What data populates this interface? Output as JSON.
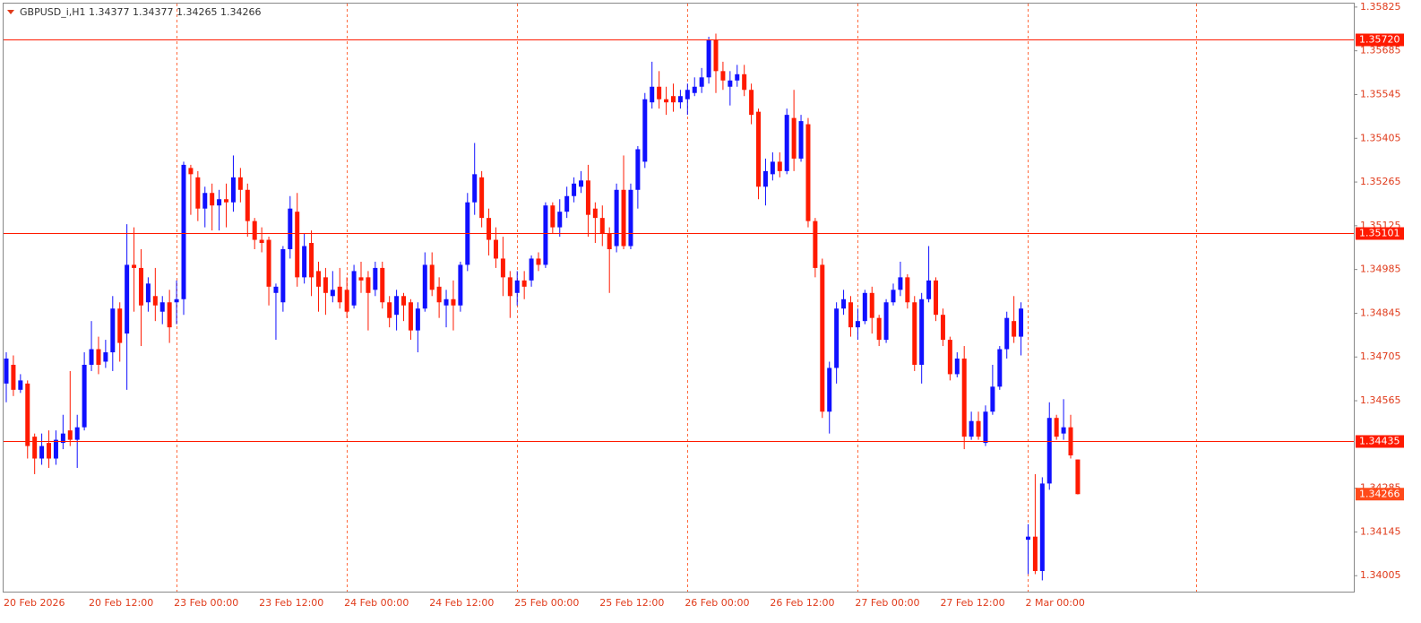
{
  "chart_data": {
    "type": "candlestick",
    "title": "GBPUSD_i,H1  1.34377 1.34377 1.34265 1.34266",
    "categories": [
      "20 Feb 2026",
      null,
      null,
      null,
      null,
      null,
      null,
      null,
      null,
      null,
      null,
      null,
      "20 Feb 12:00",
      null,
      null,
      null,
      null,
      null,
      null,
      null,
      null,
      null,
      null,
      null,
      "23 Feb 00:00",
      null,
      null,
      null,
      null,
      null,
      null,
      null,
      null,
      null,
      null,
      null,
      "23 Feb 12:00",
      null,
      null,
      null,
      null,
      null,
      null,
      null,
      null,
      null,
      null,
      null,
      "24 Feb 00:00",
      null,
      null,
      null,
      null,
      null,
      null,
      null,
      null,
      null,
      null,
      null,
      "24 Feb 12:00",
      null,
      null,
      null,
      null,
      null,
      null,
      null,
      null,
      null,
      null,
      null,
      "25 Feb 00:00",
      null,
      null,
      null,
      null,
      null,
      null,
      null,
      null,
      null,
      null,
      null,
      "25 Feb 12:00",
      null,
      null,
      null,
      null,
      null,
      null,
      null,
      null,
      null,
      null,
      null,
      "26 Feb 00:00",
      null,
      null,
      null,
      null,
      null,
      null,
      null,
      null,
      null,
      null,
      null,
      "26 Feb 12:00",
      null,
      null,
      null,
      null,
      null,
      null,
      null,
      null,
      null,
      null,
      null,
      "27 Feb 00:00",
      null,
      null,
      null,
      null,
      null,
      null,
      null,
      null,
      null,
      null,
      null,
      "27 Feb 12:00",
      null,
      null,
      null,
      null,
      null,
      null,
      null,
      null,
      null,
      null,
      null,
      "2 Mar 00:00",
      null,
      null,
      null,
      null,
      null,
      null,
      null
    ],
    "open": [
      1.3462,
      1.3468,
      1.346,
      1.3462,
      1.3445,
      1.3438,
      1.3443,
      1.3438,
      1.3443,
      1.3447,
      1.3444,
      1.3448,
      1.3468,
      1.3473,
      1.3469,
      1.3472,
      1.3486,
      1.3478,
      1.35,
      1.3499,
      1.3488,
      1.349,
      1.3485,
      1.3488,
      1.3488,
      1.3489,
      1.3531,
      1.3528,
      1.3518,
      1.3523,
      1.3519,
      1.3521,
      1.352,
      1.3528,
      1.3524,
      1.3514,
      1.3508,
      1.3508,
      1.3491,
      1.3488,
      1.3505,
      1.3517,
      1.3496,
      1.3507,
      1.3498,
      1.3496,
      1.349,
      1.3493,
      1.3492,
      1.3487,
      1.3496,
      1.3496,
      1.3492,
      1.3499,
      1.3488,
      1.3484,
      1.349,
      1.3488,
      1.3479,
      1.3486,
      1.35,
      1.3493,
      1.3487,
      1.3489,
      1.3487,
      1.35,
      1.352,
      1.3528,
      1.3515,
      1.3508,
      1.3502,
      1.3496,
      1.3491,
      1.3495,
      1.3495,
      1.3502,
      1.35,
      1.3519,
      1.3512,
      1.3517,
      1.3522,
      1.3525,
      1.3527,
      1.3518,
      1.3515,
      1.351,
      1.3506,
      1.3524,
      1.3506,
      1.3524,
      1.3533,
      1.3552,
      1.3557,
      1.3553,
      1.3554,
      1.3552,
      1.3553,
      1.3555,
      1.3557,
      1.356,
      1.3572,
      1.3562,
      1.3557,
      1.3559,
      1.3561,
      1.3556,
      1.3549,
      1.3525,
      1.3529,
      1.3533,
      1.353,
      1.3547,
      1.3534,
      1.3545,
      1.3514,
      1.35,
      1.3453,
      1.3467,
      1.3486,
      1.3488,
      1.348,
      1.3482,
      1.3491,
      1.3483,
      1.3476,
      1.3488,
      1.3492,
      1.3496,
      1.3488,
      1.3468,
      1.3489,
      1.3495,
      1.3484,
      1.3476,
      1.3465,
      1.347,
      1.3445,
      1.345,
      1.3443,
      1.3453,
      1.3461,
      1.3473,
      1.3482,
      1.3477,
      1.3412,
      1.3413,
      1.3402,
      1.343,
      1.3451,
      1.3446,
      1.3448,
      1.34377
    ],
    "high": [
      1.3472,
      1.3471,
      1.3465,
      1.3463,
      1.3446,
      1.3446,
      1.3447,
      1.3447,
      1.3452,
      1.3466,
      1.3452,
      1.3472,
      1.3482,
      1.3477,
      1.3476,
      1.349,
      1.3488,
      1.3513,
      1.3512,
      1.3505,
      1.3496,
      1.3499,
      1.349,
      1.3492,
      1.3495,
      1.3533,
      1.3532,
      1.353,
      1.3525,
      1.3526,
      1.3524,
      1.3526,
      1.3535,
      1.3531,
      1.3526,
      1.3515,
      1.3512,
      1.3509,
      1.3494,
      1.3506,
      1.3522,
      1.3523,
      1.351,
      1.3511,
      1.3501,
      1.3499,
      1.3498,
      1.3499,
      1.3496,
      1.35,
      1.3501,
      1.3498,
      1.3501,
      1.3501,
      1.349,
      1.3492,
      1.3491,
      1.3489,
      1.3488,
      1.3504,
      1.3504,
      1.3496,
      1.3492,
      1.3495,
      1.3501,
      1.3523,
      1.3539,
      1.353,
      1.3518,
      1.3512,
      1.3509,
      1.3498,
      1.3498,
      1.3498,
      1.3503,
      1.3504,
      1.352,
      1.352,
      1.3521,
      1.3525,
      1.3528,
      1.353,
      1.3532,
      1.352,
      1.3519,
      1.3512,
      1.3526,
      1.3535,
      1.3526,
      1.3538,
      1.3555,
      1.3565,
      1.3562,
      1.3557,
      1.3558,
      1.3556,
      1.3558,
      1.356,
      1.3563,
      1.3573,
      1.3574,
      1.3565,
      1.3562,
      1.3564,
      1.3564,
      1.3558,
      1.355,
      1.3534,
      1.3536,
      1.3536,
      1.355,
      1.3556,
      1.3548,
      1.3547,
      1.3515,
      1.3502,
      1.3469,
      1.3488,
      1.3492,
      1.349,
      1.3486,
      1.3492,
      1.3493,
      1.3484,
      1.3489,
      1.3494,
      1.3501,
      1.3497,
      1.349,
      1.3491,
      1.3506,
      1.3496,
      1.3486,
      1.3477,
      1.3472,
      1.3474,
      1.3453,
      1.3453,
      1.3455,
      1.3468,
      1.3474,
      1.3485,
      1.349,
      1.3488,
      1.3417,
      1.3433,
      1.3432,
      1.3456,
      1.3452,
      1.3457,
      1.3452,
      1.34377
    ],
    "low": [
      1.3456,
      1.3458,
      1.3459,
      1.3438,
      1.3433,
      1.3436,
      1.3435,
      1.3436,
      1.3441,
      1.3442,
      1.3435,
      1.3447,
      1.3466,
      1.3465,
      1.3467,
      1.3466,
      1.3469,
      1.346,
      1.3485,
      1.3474,
      1.3485,
      1.3482,
      1.3481,
      1.3475,
      1.3481,
      1.3484,
      1.3516,
      1.3514,
      1.3512,
      1.3511,
      1.3511,
      1.3512,
      1.3517,
      1.352,
      1.3509,
      1.3505,
      1.3504,
      1.3487,
      1.3476,
      1.3485,
      1.3502,
      1.3493,
      1.3494,
      1.349,
      1.3485,
      1.3484,
      1.3488,
      1.3486,
      1.3483,
      1.3486,
      1.3491,
      1.3479,
      1.349,
      1.3486,
      1.348,
      1.3479,
      1.3482,
      1.3476,
      1.3472,
      1.3485,
      1.349,
      1.3483,
      1.348,
      1.3479,
      1.3485,
      1.3498,
      1.3516,
      1.3512,
      1.3503,
      1.3499,
      1.349,
      1.3483,
      1.3487,
      1.3489,
      1.3493,
      1.3498,
      1.3499,
      1.351,
      1.3509,
      1.3515,
      1.352,
      1.3523,
      1.3509,
      1.3507,
      1.3506,
      1.3491,
      1.3504,
      1.3505,
      1.3505,
      1.3518,
      1.3531,
      1.355,
      1.355,
      1.3548,
      1.3549,
      1.355,
      1.3548,
      1.3554,
      1.3555,
      1.3558,
      1.3555,
      1.3556,
      1.3551,
      1.3557,
      1.3554,
      1.3545,
      1.3521,
      1.3519,
      1.3527,
      1.3528,
      1.3529,
      1.353,
      1.3533,
      1.3512,
      1.3496,
      1.3451,
      1.3446,
      1.3462,
      1.3484,
      1.3477,
      1.3476,
      1.3481,
      1.3478,
      1.3474,
      1.3475,
      1.3487,
      1.349,
      1.3486,
      1.3466,
      1.3462,
      1.3488,
      1.3482,
      1.3474,
      1.3463,
      1.3464,
      1.3441,
      1.3444,
      1.3444,
      1.3442,
      1.3452,
      1.346,
      1.347,
      1.3475,
      1.3471,
      1.3401,
      1.3401,
      1.3399,
      1.3428,
      1.3444,
      1.3444,
      1.3438,
      1.34265
    ],
    "close": [
      1.347,
      1.346,
      1.3463,
      1.3442,
      1.3438,
      1.3442,
      1.3438,
      1.3444,
      1.3446,
      1.3444,
      1.3448,
      1.3468,
      1.3473,
      1.3468,
      1.3472,
      1.3486,
      1.3475,
      1.35,
      1.3499,
      1.3487,
      1.3494,
      1.3487,
      1.3488,
      1.348,
      1.3489,
      1.3532,
      1.3529,
      1.3518,
      1.3523,
      1.3519,
      1.3521,
      1.352,
      1.3528,
      1.3524,
      1.3514,
      1.3508,
      1.3507,
      1.3493,
      1.3493,
      1.3505,
      1.3518,
      1.3496,
      1.3506,
      1.3496,
      1.3493,
      1.3491,
      1.3492,
      1.3488,
      1.3485,
      1.3498,
      1.3495,
      1.3491,
      1.3499,
      1.3488,
      1.3483,
      1.349,
      1.3487,
      1.3479,
      1.3486,
      1.35,
      1.3492,
      1.3488,
      1.3489,
      1.3487,
      1.35,
      1.352,
      1.3529,
      1.3515,
      1.3508,
      1.3502,
      1.3496,
      1.349,
      1.3495,
      1.3493,
      1.3502,
      1.35,
      1.3519,
      1.3512,
      1.3517,
      1.3522,
      1.3526,
      1.3527,
      1.3516,
      1.3515,
      1.351,
      1.3505,
      1.3524,
      1.3506,
      1.3524,
      1.3537,
      1.3553,
      1.3557,
      1.3553,
      1.3552,
      1.3552,
      1.3554,
      1.3556,
      1.3557,
      1.356,
      1.3572,
      1.3562,
      1.3559,
      1.3559,
      1.3561,
      1.3556,
      1.3548,
      1.3525,
      1.353,
      1.3533,
      1.353,
      1.3548,
      1.3534,
      1.3546,
      1.3514,
      1.3499,
      1.3453,
      1.3467,
      1.3486,
      1.3489,
      1.348,
      1.3482,
      1.3491,
      1.3483,
      1.3476,
      1.3488,
      1.3492,
      1.3496,
      1.3488,
      1.3468,
      1.3489,
      1.3495,
      1.3484,
      1.3476,
      1.3465,
      1.347,
      1.3445,
      1.345,
      1.3445,
      1.3453,
      1.3461,
      1.3473,
      1.3483,
      1.3477,
      1.3486,
      1.3413,
      1.3402,
      1.343,
      1.3451,
      1.3445,
      1.3448,
      1.3439,
      1.34266
    ],
    "up_color": "#1010ff",
    "down_color": "#ff1a00",
    "ylim": [
      1.33954,
      1.35839
    ],
    "yticks": [
      1.35825,
      1.35685,
      1.35545,
      1.35405,
      1.35265,
      1.35125,
      1.34985,
      1.34845,
      1.34705,
      1.34565,
      1.34285,
      1.34145,
      1.34005
    ],
    "hlines": [
      {
        "value": 1.3572,
        "label": "1.35720"
      },
      1.35101,
      1.34435
    ],
    "hline_color": "#ff1a00",
    "last_price": 1.34266,
    "last_price_color": "#ff4a1a",
    "grid": true
  }
}
